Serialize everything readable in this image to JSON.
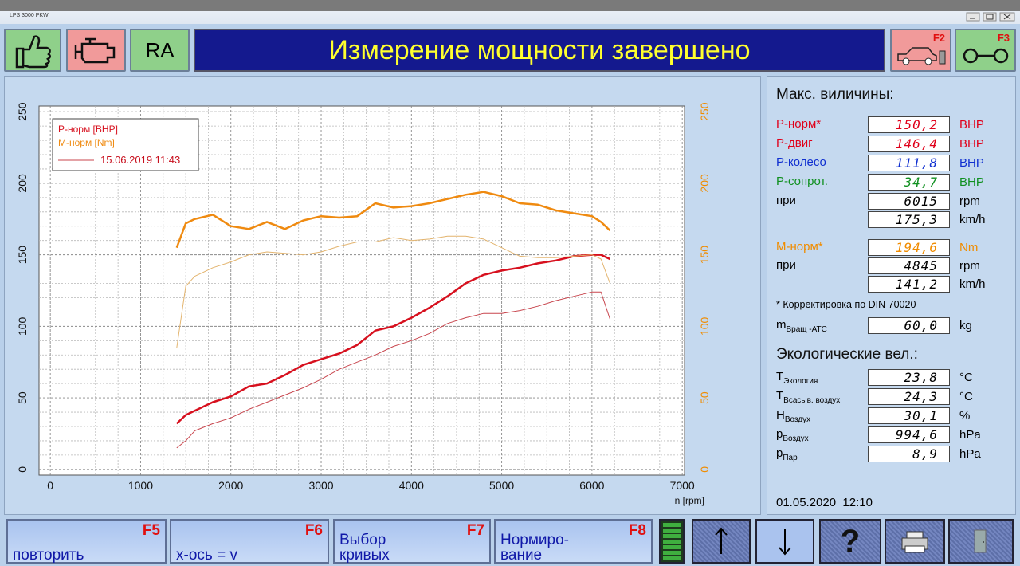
{
  "window": {
    "title": "LPS 3000 PKW"
  },
  "toolbar": {
    "ra": "RA",
    "status": "Измерение мощности завершено",
    "f2": "F2",
    "f3": "F3"
  },
  "chart": {
    "type": "line",
    "x_label": "n [rpm]",
    "xlim": [
      -125,
      7025
    ],
    "xticks": [
      0,
      1000,
      2000,
      3000,
      4000,
      5000,
      6000,
      7000
    ],
    "ylim": [
      -4,
      254
    ],
    "yticks": [
      0,
      50,
      100,
      150,
      200,
      250
    ],
    "y2lim": [
      -4,
      254
    ],
    "y2ticks": [
      0,
      50,
      100,
      150,
      200,
      250
    ],
    "y2color": "#f08c00",
    "grid": true,
    "comparison_label": "15.06.2019 11:43",
    "x": [
      1400,
      1500,
      1600,
      1800,
      2000,
      2200,
      2400,
      2600,
      2800,
      3000,
      3200,
      3400,
      3600,
      3800,
      4000,
      4200,
      4400,
      4600,
      4800,
      5000,
      5200,
      5400,
      5600,
      5800,
      6000,
      6100,
      6200
    ],
    "series": [
      {
        "name": "P-норм [BHP]",
        "color": "#d7101e",
        "width": 2.5,
        "values": [
          32,
          38,
          41,
          47,
          51,
          58,
          60,
          66,
          73,
          77,
          81,
          87,
          97,
          100,
          106,
          113,
          121,
          130,
          136,
          139,
          141,
          144,
          146,
          149,
          150,
          150,
          147
        ]
      },
      {
        "name": "M-норм [Nm]",
        "color": "#ef8a10",
        "width": 2.5,
        "axis": "y2",
        "values": [
          155,
          172,
          175,
          178,
          170,
          168,
          173,
          168,
          174,
          177,
          176,
          177,
          186,
          183,
          184,
          186,
          189,
          192,
          194,
          191,
          186,
          185,
          181,
          179,
          177,
          173,
          167
        ]
      },
      {
        "color": "#c8464e",
        "width": 1,
        "values": [
          15,
          20,
          27,
          32,
          36,
          42,
          47,
          52,
          57,
          63,
          70,
          75,
          80,
          86,
          90,
          95,
          102,
          106,
          109,
          109,
          111,
          114,
          118,
          121,
          124,
          124,
          105
        ]
      },
      {
        "color": "#e3b46e",
        "width": 1,
        "axis": "y2",
        "values": [
          85,
          128,
          135,
          141,
          145,
          150,
          152,
          151,
          150,
          152,
          156,
          159,
          159,
          162,
          160,
          161,
          163,
          163,
          161,
          155,
          149,
          148,
          148,
          149,
          150,
          147,
          130
        ]
      }
    ]
  },
  "panel": {
    "max_title": "Макс. виличины:",
    "max_rows": [
      {
        "label": "P-норм*",
        "value": "150,2",
        "unit": "BHP",
        "color": "#e0001a"
      },
      {
        "label": "P-двиг",
        "value": "146,4",
        "unit": "BHP",
        "color": "#e0001a"
      },
      {
        "label": "P-колесо",
        "value": "111,8",
        "unit": "BHP",
        "color": "#1030d0"
      },
      {
        "label": "P-сопрот.",
        "value": "34,7",
        "unit": "BHP",
        "color": "#109020"
      },
      {
        "label": "при",
        "value": "6015",
        "unit": "rpm"
      },
      {
        "value": "175,3",
        "unit": "km/h"
      },
      {
        "label": "M-норм*",
        "value": "194,6",
        "unit": "Nm",
        "color": "#f08c00"
      },
      {
        "label": "при",
        "value": "4845",
        "unit": "rpm"
      },
      {
        "value": "141,2",
        "unit": "km/h"
      }
    ],
    "note": "* Корректировка по DIN 70020",
    "extra_rows": [
      {
        "label": "m",
        "sub": "Вращ -АТС",
        "value": "60,0",
        "unit": "kg"
      }
    ],
    "eco_title": "Экологические вел.:",
    "eco_rows": [
      {
        "label": "T",
        "sub": "Экология",
        "value": "23,8",
        "unit": "°C"
      },
      {
        "label": "T",
        "sub": "Всасыв. воздух",
        "value": "24,3",
        "unit": "°C"
      },
      {
        "label": "H",
        "sub": "Воздух",
        "value": "30,1",
        "unit": "%"
      },
      {
        "label": "p",
        "sub": "Воздух",
        "value": "994,6",
        "unit": "hPa"
      },
      {
        "label": "p",
        "sub": "Пар",
        "value": "8,9",
        "unit": "hPa"
      }
    ],
    "datetime": "01.05.2020  12:10"
  },
  "buttons": [
    {
      "key": "F5",
      "label": [
        "повторить"
      ]
    },
    {
      "key": "F6",
      "label": [
        "x-ось = v"
      ]
    },
    {
      "key": "F7",
      "label": [
        "Выбор",
        "кривых"
      ]
    },
    {
      "key": "F8",
      "label": [
        "Нормиро-",
        "вание"
      ]
    }
  ],
  "help_label": "?"
}
